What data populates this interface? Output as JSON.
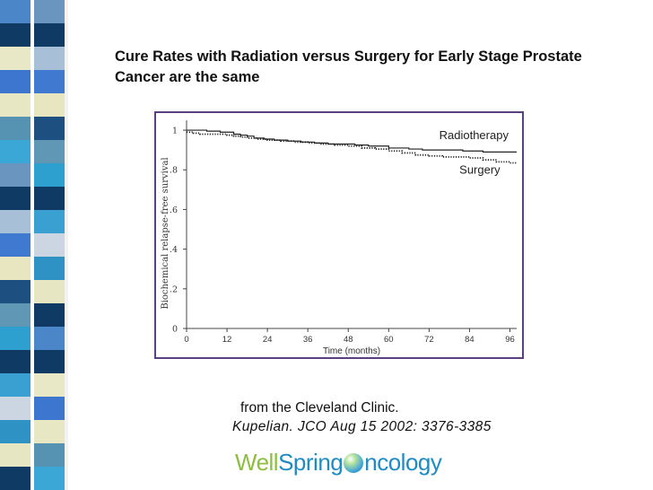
{
  "slide": {
    "title": "Cure Rates with Radiation versus Surgery for Early Stage Prostate Cancer are the same",
    "source": "from the Cleveland Clinic.",
    "citation": "Kupelian. JCO Aug 15 2002: 3376-3385"
  },
  "logo": {
    "part1": "Well",
    "part2": "Spring",
    "part3": "ncology",
    "orb_letter": "O"
  },
  "sidebar": {
    "colors": [
      "#4a86c8",
      "#0e3a64",
      "#e9e8c6",
      "#3d76cf",
      "#e8e7c4",
      "#5693b2",
      "#3aa7d7",
      "#6a95bf",
      "#0e3a64",
      "#a7c0d8",
      "#3f79d0",
      "#e7e6c1",
      "#1d5081",
      "#5f97b4",
      "#2ea0cf",
      "#0e3a64",
      "#3aa0d1",
      "#cbd6e2",
      "#2e93c4",
      "#e7e6c3",
      "#0e3a64"
    ]
  },
  "chart_data": {
    "type": "line",
    "title": "",
    "xlabel": "Time (months)",
    "ylabel": "Biochemical relapse-free survival",
    "xlim": [
      0,
      98
    ],
    "ylim": [
      0,
      1.05
    ],
    "xticks": [
      0,
      12,
      24,
      36,
      48,
      60,
      72,
      84,
      96
    ],
    "yticks": [
      0,
      0.2,
      0.4,
      0.6,
      0.8,
      1
    ],
    "ytick_labels": [
      "0",
      ".2",
      ".4",
      ".6",
      ".8",
      "1"
    ],
    "series": [
      {
        "name": "Radiotherapy",
        "style": "solid",
        "x": [
          0,
          3,
          6,
          8,
          10,
          13,
          14,
          16,
          18,
          20,
          23,
          26,
          30,
          34,
          38,
          42,
          46,
          50,
          54,
          56,
          60,
          63,
          66,
          70,
          76,
          82,
          88,
          94,
          98
        ],
        "y": [
          1.0,
          1.0,
          0.995,
          0.995,
          0.99,
          0.99,
          0.98,
          0.975,
          0.97,
          0.96,
          0.955,
          0.95,
          0.945,
          0.94,
          0.935,
          0.93,
          0.93,
          0.925,
          0.92,
          0.92,
          0.91,
          0.91,
          0.905,
          0.9,
          0.9,
          0.895,
          0.89,
          0.89,
          0.89
        ]
      },
      {
        "name": "Surgery",
        "style": "dotted",
        "x": [
          0,
          2,
          4,
          8,
          12,
          14,
          16,
          18,
          21,
          24,
          28,
          32,
          36,
          40,
          44,
          48,
          52,
          56,
          60,
          64,
          68,
          72,
          76,
          80,
          84,
          86,
          88,
          90,
          92,
          94,
          96,
          98
        ],
        "y": [
          0.99,
          0.985,
          0.98,
          0.98,
          0.975,
          0.97,
          0.965,
          0.96,
          0.955,
          0.95,
          0.945,
          0.94,
          0.935,
          0.93,
          0.925,
          0.92,
          0.91,
          0.905,
          0.895,
          0.885,
          0.875,
          0.87,
          0.865,
          0.865,
          0.86,
          0.86,
          0.85,
          0.85,
          0.84,
          0.84,
          0.835,
          0.835
        ]
      }
    ],
    "annotations": [
      {
        "text": "Radiotherapy",
        "x": 75,
        "y": 0.955
      },
      {
        "text": "Surgery",
        "x": 81,
        "y": 0.78
      }
    ]
  }
}
